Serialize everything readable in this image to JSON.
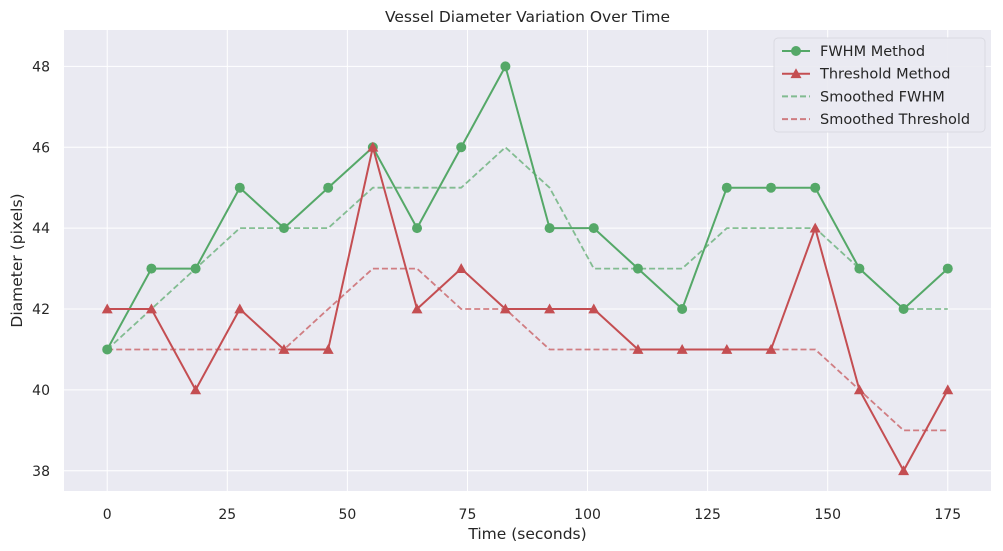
{
  "chart_data": {
    "type": "line",
    "title": "Vessel Diameter Variation Over Time",
    "xlabel": "Time (seconds)",
    "ylabel": "Diameter (pixels)",
    "xlim": [
      -9,
      184
    ],
    "ylim": [
      37.5,
      48.9
    ],
    "xticks": [
      0,
      25,
      50,
      75,
      100,
      125,
      150,
      175
    ],
    "yticks": [
      38,
      40,
      42,
      44,
      46,
      48
    ],
    "grid": true,
    "legend_position": "top-right",
    "x": [
      0,
      9.2,
      18.4,
      27.6,
      36.8,
      46,
      55.3,
      64.5,
      73.7,
      82.9,
      92.1,
      101.3,
      110.5,
      119.7,
      129,
      138.2,
      147.4,
      156.6,
      165.8,
      175
    ],
    "series": [
      {
        "name": "FWHM Method",
        "color": "#55a868",
        "style": "solid",
        "marker": "circle",
        "values": [
          41,
          43,
          43,
          45,
          44,
          45,
          46,
          44,
          46,
          48,
          44,
          44,
          43,
          42,
          45,
          45,
          45,
          43,
          42,
          43
        ]
      },
      {
        "name": "Threshold Method",
        "color": "#c44e52",
        "style": "solid",
        "marker": "triangle",
        "values": [
          42,
          42,
          40,
          42,
          41,
          41,
          46,
          42,
          43,
          42,
          42,
          42,
          41,
          41,
          41,
          41,
          44,
          40,
          38,
          40
        ]
      },
      {
        "name": "Smoothed FWHM",
        "color": "#55a868",
        "style": "dashed",
        "marker": "none",
        "values": [
          41,
          42,
          43,
          44,
          44,
          44,
          45,
          45,
          45,
          46,
          45,
          43,
          43,
          43,
          44,
          44,
          44,
          43,
          42,
          42
        ]
      },
      {
        "name": "Smoothed Threshold",
        "color": "#c44e52",
        "style": "dashed",
        "marker": "none",
        "values": [
          41,
          41,
          41,
          41,
          41,
          42,
          43,
          43,
          42,
          42,
          41,
          41,
          41,
          41,
          41,
          41,
          41,
          40,
          39,
          39
        ]
      }
    ]
  }
}
